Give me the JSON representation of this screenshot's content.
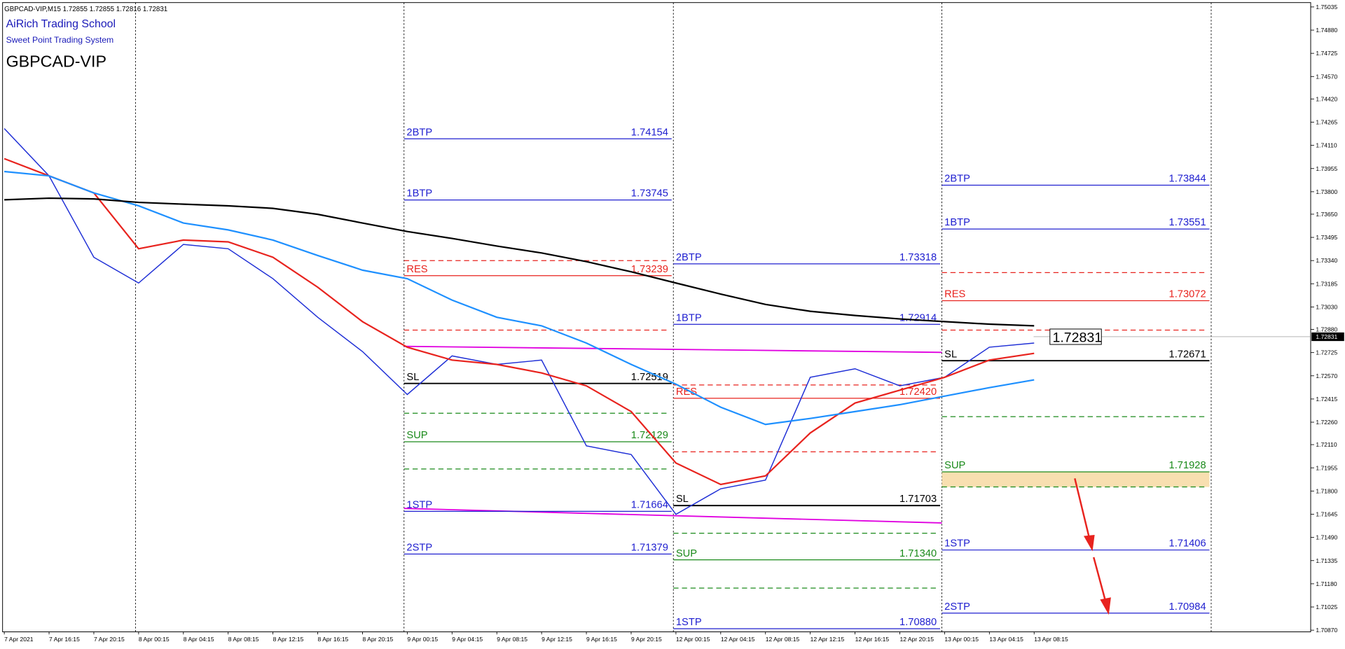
{
  "chart_data": {
    "type": "line",
    "header": "GBPCAD-VIP,M15  1.72855 1.72855 1.72816 1.72831",
    "title": "AiRich Trading School",
    "subtitle": "Sweet Point Trading System",
    "symbol": "GBPCAD-VIP",
    "current_price": 1.72831,
    "categories": [
      "7 Apr 2021",
      "7 Apr 16:15",
      "7 Apr 20:15",
      "8 Apr 00:15",
      "8 Apr 04:15",
      "8 Apr 08:15",
      "8 Apr 12:15",
      "8 Apr 16:15",
      "8 Apr 20:15",
      "9 Apr 00:15",
      "9 Apr 04:15",
      "9 Apr 08:15",
      "9 Apr 12:15",
      "9 Apr 16:15",
      "9 Apr 20:15",
      "12 Apr 00:15",
      "12 Apr 04:15",
      "12 Apr 08:15",
      "12 Apr 12:15",
      "12 Apr 16:15",
      "12 Apr 20:15",
      "13 Apr 00:15",
      "13 Apr 04:15",
      "13 Apr 08:15"
    ],
    "series": [
      {
        "color": "#1f2fd6",
        "values": [
          1.74222,
          1.73906,
          1.73362,
          1.7319,
          1.73448,
          1.73419,
          1.73219,
          1.72961,
          1.72732,
          1.72445,
          1.72703,
          1.72646,
          1.72675,
          1.72102,
          1.72044,
          1.71644,
          1.71815,
          1.71873,
          1.7256,
          1.72617,
          1.72503,
          1.7256,
          1.72761,
          1.72789
        ]
      },
      {
        "color": "#e8231e",
        "values": [
          1.74021,
          1.73906,
          1.73792,
          1.73419,
          1.73477,
          1.73465,
          1.73362,
          1.73162,
          1.72932,
          1.72761,
          1.72675,
          1.72646,
          1.72589,
          1.72503,
          1.72331,
          1.71987,
          1.71844,
          1.71901,
          1.72188,
          1.72388,
          1.72474,
          1.7256,
          1.72675,
          1.7272
        ]
      },
      {
        "color": "#1e90ff",
        "values": [
          1.73935,
          1.73906,
          1.73792,
          1.73706,
          1.73591,
          1.73545,
          1.73477,
          1.73374,
          1.73276,
          1.73219,
          1.73076,
          1.72961,
          1.72904,
          1.72789,
          1.72646,
          1.72514,
          1.7236,
          1.72245,
          1.72285,
          1.72331,
          1.72377,
          1.72434,
          1.72491,
          1.72543
        ]
      },
      {
        "color": "#000000",
        "values": [
          1.73746,
          1.73757,
          1.73752,
          1.73729,
          1.73717,
          1.73706,
          1.73689,
          1.73649,
          1.73591,
          1.73534,
          1.73488,
          1.73437,
          1.73391,
          1.73333,
          1.73265,
          1.7319,
          1.73116,
          1.73047,
          1.73001,
          1.72973,
          1.7295,
          1.72932,
          1.72915,
          1.72904
        ]
      }
    ],
    "ylim": [
      1.70859,
      1.75064
    ],
    "yticks": [
      1.75035,
      {
        "value": 1.7488,
        "label": "1.74880"
      },
      1.74725,
      {
        "value": 1.7457,
        "label": "1.74570"
      },
      {
        "value": 1.7442,
        "label": "1.74420"
      },
      1.74265,
      {
        "value": 1.7411,
        "label": "1.74110"
      },
      1.73955,
      {
        "value": 1.738,
        "label": "1.73800"
      },
      {
        "value": 1.7365,
        "label": "1.73650"
      },
      1.73495,
      {
        "value": 1.7334,
        "label": "1.73340"
      },
      1.73185,
      {
        "value": 1.7303,
        "label": "1.73030"
      },
      {
        "value": 1.7288,
        "label": "1.72880"
      },
      1.72725,
      {
        "value": 1.7257,
        "label": "1.72570"
      },
      1.72415,
      {
        "value": 1.7226,
        "label": "1.72260"
      },
      {
        "value": 1.7211,
        "label": "1.72110"
      },
      1.71955,
      {
        "value": 1.718,
        "label": "1.71800"
      },
      1.71645,
      {
        "value": 1.7149,
        "label": "1.71490"
      },
      1.71335,
      {
        "value": 1.7118,
        "label": "1.71180"
      },
      1.71025,
      {
        "value": 1.7087,
        "label": "1.70870"
      }
    ],
    "level_groups": [
      {
        "levels": [
          {
            "name": "2BTP",
            "value": 1.74154,
            "color": "#2020d0"
          },
          {
            "name": "1BTP",
            "value": 1.73745,
            "color": "#2020d0"
          },
          {
            "name": "RES",
            "value": 1.73239,
            "color": "#e8231e"
          },
          {
            "name": "SL",
            "value": 1.72519,
            "color": "#000000"
          },
          {
            "name": "SUP",
            "value": 1.72129,
            "color": "#1a8a1a"
          },
          {
            "name": "1STP",
            "value": 1.71664,
            "color": "#2020d0"
          },
          {
            "name": "2STP",
            "value": 1.71379,
            "color": "#2020d0"
          }
        ]
      },
      {
        "levels": [
          {
            "name": "2BTP",
            "value": 1.73318,
            "color": "#2020d0"
          },
          {
            "name": "1BTP",
            "value": 1.72914,
            "color": "#2020d0"
          },
          {
            "name": "RES",
            "value": 1.7242,
            "value_label": "1.72420",
            "color": "#e8231e"
          },
          {
            "name": "SL",
            "value": 1.71703,
            "color": "#000000"
          },
          {
            "name": "SUP",
            "value": 1.7134,
            "value_label": "1.71340",
            "color": "#1a8a1a"
          },
          {
            "name": "1STP",
            "value": 1.7088,
            "value_label": "1.70880",
            "color": "#2020d0"
          }
        ]
      },
      {
        "levels": [
          {
            "name": "2BTP",
            "value": 1.73844,
            "color": "#2020d0"
          },
          {
            "name": "1BTP",
            "value": 1.73551,
            "color": "#2020d0"
          },
          {
            "name": "RES",
            "value": 1.73072,
            "color": "#e8231e"
          },
          {
            "name": "SL",
            "value": 1.72671,
            "color": "#000000"
          },
          {
            "name": "SUP",
            "value": 1.71928,
            "color": "#1a8a1a"
          },
          {
            "name": "1STP",
            "value": 1.71406,
            "color": "#2020d0"
          },
          {
            "name": "2STP",
            "value": 1.70984,
            "color": "#2020d0"
          }
        ]
      }
    ]
  }
}
